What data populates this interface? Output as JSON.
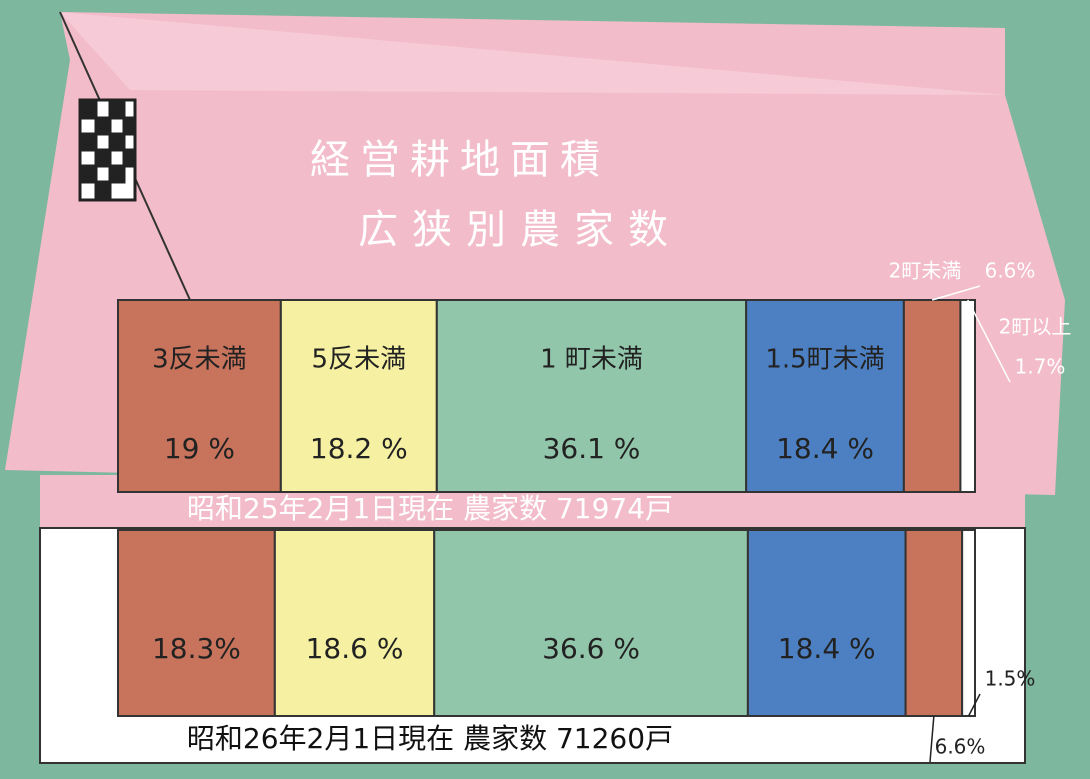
{
  "chart_data": {
    "type": "bar",
    "orientation": "horizontal",
    "stacked": true,
    "title": "経営耕地面積",
    "subtitle": "広狭別農家数",
    "categories": [
      "昭和25年2月1日現在 農家数 71974戸",
      "昭和26年2月1日現在 農家数 71260戸"
    ],
    "series": [
      {
        "name": "3反未満",
        "color": "#c8735c",
        "values": [
          19,
          18.3
        ],
        "value_labels": [
          "19 %",
          "18.3%"
        ]
      },
      {
        "name": "5反未満",
        "color": "#f6f1a2",
        "values": [
          18.2,
          18.6
        ],
        "value_labels": [
          "18.2 %",
          "18.6 %"
        ]
      },
      {
        "name": "1 町未満",
        "color": "#92c6aa",
        "values": [
          36.1,
          36.6
        ],
        "value_labels": [
          "36.1 %",
          "36.6 %"
        ]
      },
      {
        "name": "1.5町未満",
        "color": "#4d80c2",
        "values": [
          18.4,
          18.4
        ],
        "value_labels": [
          "18.4 %",
          "18.4 %"
        ]
      },
      {
        "name": "2町未満",
        "color": "#c8735c",
        "values": [
          6.6,
          6.6
        ],
        "value_labels": [
          "6.6%",
          "6.6%"
        ]
      },
      {
        "name": "2町以上",
        "color": "#ffffff",
        "values": [
          1.7,
          1.5
        ],
        "value_labels": [
          "1.7%",
          "1.5%"
        ]
      }
    ]
  }
}
